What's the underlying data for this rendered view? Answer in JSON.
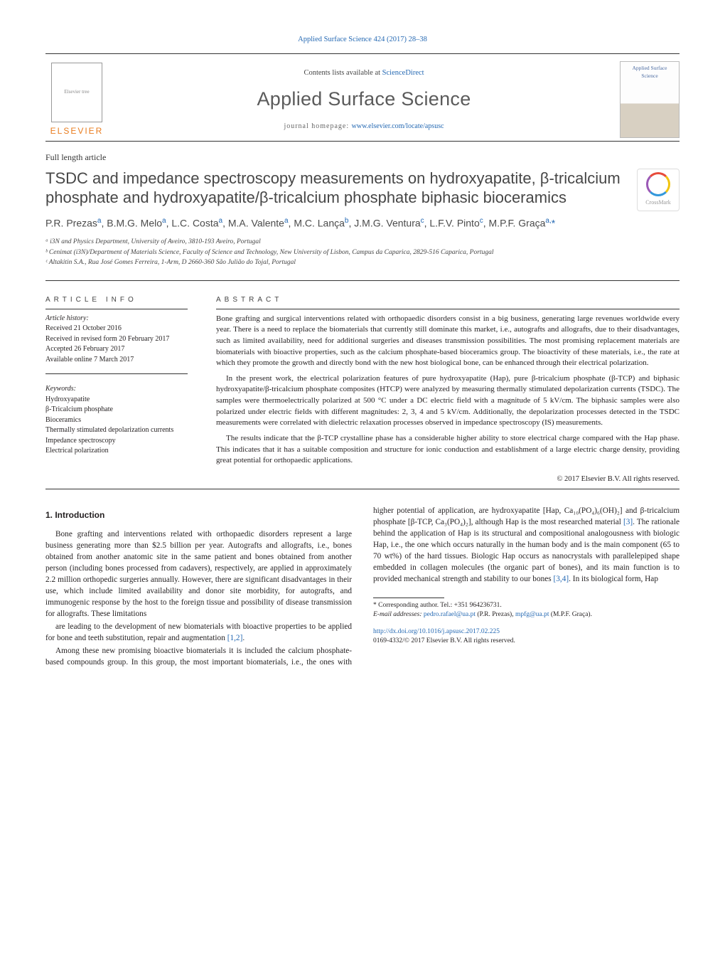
{
  "journal_ref": "Applied Surface Science 424 (2017) 28–38",
  "elsevier": "ELSEVIER",
  "contents_prefix": "Contents lists available at ",
  "contents_link": "ScienceDirect",
  "journal_name": "Applied Surface Science",
  "homepage_label": "journal homepage: ",
  "homepage_url": "www.elsevier.com/locate/apsusc",
  "cover_label": "Applied Surface Science",
  "article_type": "Full length article",
  "title": "TSDC and impedance spectroscopy measurements on hydroxyapatite, β-tricalcium phosphate and hydroxyapatite/β-tricalcium phosphate biphasic bioceramics",
  "crossmark": "CrossMark",
  "authors_html": "P.R. Prezas<sup>a</sup>, B.M.G. Melo<sup>a</sup>, L.C. Costa<sup>a</sup>, M.A. Valente<sup>a</sup>, M.C. Lança<sup>b</sup>, J.M.G. Ventura<sup>c</sup>, L.F.V. Pinto<sup>c</sup>, M.P.F. Graça<sup>a,</sup><span class='star'>*</span>",
  "affiliations": [
    "ᵃ i3N and Physics Department, University of Aveiro, 3810-193 Aveiro, Portugal",
    "ᵇ Cenimat (i3N)/Department of Materials Science, Faculty of Science and Technology, New University of Lisbon, Campus da Caparica, 2829-516 Caparica, Portugal",
    "ᶜ Altakitin S.A., Rua José Gomes Ferreira, 1-Arm, D 2660-360 São Julião do Tojal, Portugal"
  ],
  "article_info_h": "article info",
  "abstract_h": "abstract",
  "history_label": "Article history:",
  "history": [
    "Received 21 October 2016",
    "Received in revised form 20 February 2017",
    "Accepted 26 February 2017",
    "Available online 7 March 2017"
  ],
  "keywords_label": "Keywords:",
  "keywords": [
    "Hydroxyapatite",
    "β-Tricalcium phosphate",
    "Bioceramics",
    "Thermally stimulated depolarization currents",
    "Impedance spectroscopy",
    "Electrical polarization"
  ],
  "abstract_paras": [
    "Bone grafting and surgical interventions related with orthopaedic disorders consist in a big business, generating large revenues worldwide every year. There is a need to replace the biomaterials that currently still dominate this market, i.e., autografts and allografts, due to their disadvantages, such as limited availability, need for additional surgeries and diseases transmission possibilities. The most promising replacement materials are biomaterials with bioactive properties, such as the calcium phosphate-based bioceramics group. The bioactivity of these materials, i.e., the rate at which they promote the growth and directly bond with the new host biological bone, can be enhanced through their electrical polarization.",
    "In the present work, the electrical polarization features of pure hydroxyapatite (Hap), pure β-tricalcium phosphate (β-TCP) and biphasic hydroxyapatite/β-tricalcium phosphate composites (HTCP) were analyzed by measuring thermally stimulated depolarization currents (TSDC). The samples were thermoelectrically polarized at 500 °C under a DC electric field with a magnitude of 5 kV/cm. The biphasic samples were also polarized under electric fields with different magnitudes: 2, 3, 4 and 5 kV/cm. Additionally, the depolarization processes detected in the TSDC measurements were correlated with dielectric relaxation processes observed in impedance spectroscopy (IS) measurements.",
    "The results indicate that the β-TCP crystalline phase has a considerable higher ability to store electrical charge compared with the Hap phase. This indicates that it has a suitable composition and structure for ionic conduction and establishment of a large electric charge density, providing great potential for orthopaedic applications."
  ],
  "copyright": "© 2017 Elsevier B.V. All rights reserved.",
  "section_heading": "1. Introduction",
  "body_paras": [
    "Bone grafting and interventions related with orthopaedic disorders represent a large business generating more than $2.5 billion per year. Autografts and allografts, i.e., bones obtained from another anatomic site in the same patient and bones obtained from another person (including bones processed from cadavers), respectively, are applied in approximately 2.2 million orthopedic surgeries annually. However, there are significant disadvantages in their use, which include limited availability and donor site morbidity, for autografts, and immunogenic response by the host to the foreign tissue and possibility of disease transmission for allografts. These limitations",
    "are leading to the development of new biomaterials with bioactive properties to be applied for bone and teeth substitution, repair and augmentation [1,2].",
    "Among these new promising bioactive biomaterials it is included the calcium phosphate-based compounds group. In this group, the most important biomaterials, i.e., the ones with higher potential of application, are hydroxyapatite [Hap, Ca₁₀(PO₄)₆(OH)₂] and β-tricalcium phosphate [β-TCP, Ca₃(PO₄)₂], although Hap is the most researched material [3]. The rationale behind the application of Hap is its structural and compositional analogousness with biologic Hap, i.e., the one which occurs naturally in the human body and is the main component (65 to 70 wt%) of the hard tissues. Biologic Hap occurs as nanocrystals with parallelepiped shape embedded in collagen molecules (the organic part of bones), and its main function is to provided mechanical strength and stability to our bones [3,4]. In its biological form, Hap"
  ],
  "corr_label": "* Corresponding author. Tel.: +351 964236731.",
  "email_label": "E-mail addresses: ",
  "emails": [
    {
      "addr": "pedro.rafael@ua.pt",
      "who": "(P.R. Prezas)"
    },
    {
      "addr": "mpfg@ua.pt",
      "who": "(M.P.F. Graça)."
    }
  ],
  "doi": "http://dx.doi.org/10.1016/j.apsusc.2017.02.225",
  "issn_line": "0169-4332/© 2017 Elsevier B.V. All rights reserved."
}
